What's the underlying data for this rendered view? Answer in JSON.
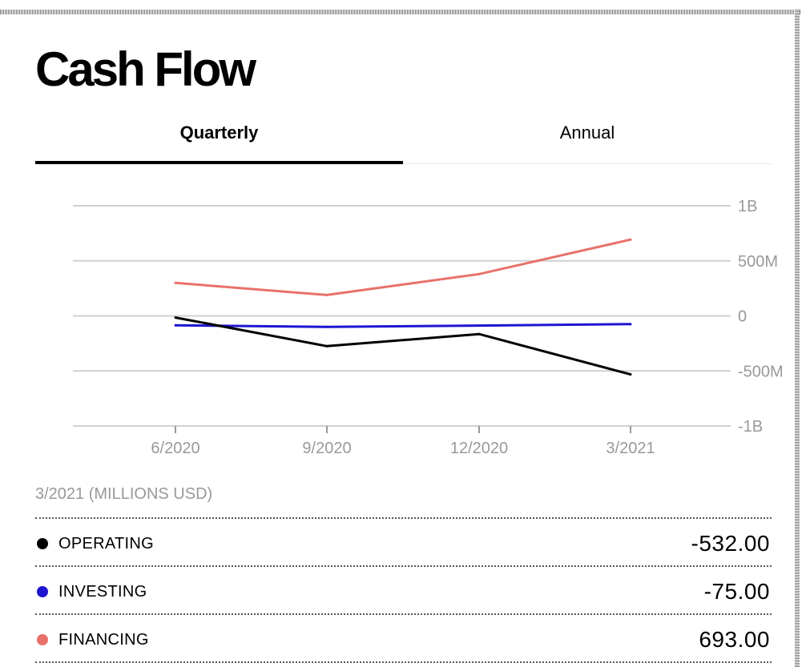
{
  "page": {
    "title": "Cash Flow"
  },
  "tabs": [
    {
      "label": "Quarterly",
      "active": true
    },
    {
      "label": "Annual",
      "active": false
    }
  ],
  "chart_data": {
    "type": "line",
    "title": "",
    "xlabel": "",
    "ylabel": "",
    "unit": "millions USD",
    "categories": [
      "6/2020",
      "9/2020",
      "12/2020",
      "3/2021"
    ],
    "y_ticks": [
      {
        "value": 1000,
        "label": "1B"
      },
      {
        "value": 500,
        "label": "500M"
      },
      {
        "value": 0,
        "label": "0"
      },
      {
        "value": -500,
        "label": "-500M"
      },
      {
        "value": -1000,
        "label": "-1B"
      }
    ],
    "ylim": [
      -1000,
      1000
    ],
    "grid": true,
    "series": [
      {
        "name": "FINANCING",
        "color": "#e8716b",
        "values": [
          300,
          190,
          380,
          693
        ]
      },
      {
        "name": "INVESTING",
        "color": "#1e14d2",
        "values": [
          -85,
          -100,
          -88,
          -75
        ]
      },
      {
        "name": "OPERATING",
        "color": "#000000",
        "values": [
          -15,
          -275,
          -165,
          -532
        ]
      }
    ]
  },
  "summary": {
    "period_label": "3/2021 (MILLIONS USD)",
    "rows": [
      {
        "label": "OPERATING",
        "value": "-532.00",
        "color": "#000000"
      },
      {
        "label": "INVESTING",
        "value": "-75.00",
        "color": "#1e14d2"
      },
      {
        "label": "FINANCING",
        "value": "693.00",
        "color": "#e8716b"
      }
    ]
  }
}
